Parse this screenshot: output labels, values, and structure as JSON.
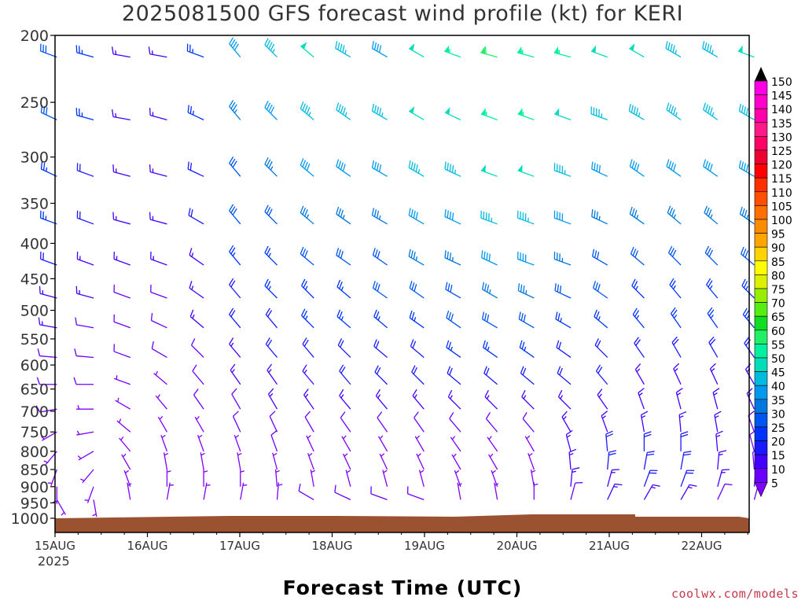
{
  "title": "2025081500 GFS forecast wind profile (kt) for KERI",
  "xlabel": "Forecast Time (UTC)",
  "credit": "coolwx.com/models",
  "year_label": "2025",
  "colors": {
    "ground": "#9b5230",
    "frame": "#000000",
    "scale": [
      "#8000ff",
      "#6a00ff",
      "#4400ff",
      "#1a1aff",
      "#0033ff",
      "#0055ee",
      "#0077dd",
      "#0099ee",
      "#00bbdd",
      "#00ddbb",
      "#00f0a0",
      "#22ee66",
      "#11dd22",
      "#55ee11",
      "#99ee00",
      "#ddf000",
      "#ffff00",
      "#ffd200",
      "#ffa500",
      "#ff8c00",
      "#ff7000",
      "#ff5000",
      "#ff3000",
      "#ff0000",
      "#ee0030",
      "#ff0066",
      "#ff1a88",
      "#ff00aa",
      "#ff00cc",
      "#ff00e6"
    ]
  },
  "chart_data": {
    "type": "wind-barb-timeheight",
    "units": "kt",
    "x_ticks": [
      "15AUG",
      "16AUG",
      "17AUG",
      "18AUG",
      "19AUG",
      "20AUG",
      "21AUG",
      "22AUG"
    ],
    "y_ticks": [
      200,
      250,
      300,
      350,
      400,
      450,
      500,
      550,
      600,
      650,
      700,
      750,
      800,
      850,
      900,
      950,
      1000
    ],
    "y_range": [
      1000,
      200
    ],
    "x_range_days": [
      0,
      7.6
    ],
    "legend_values": [
      150,
      145,
      140,
      135,
      130,
      125,
      120,
      115,
      110,
      105,
      100,
      95,
      90,
      85,
      80,
      75,
      70,
      65,
      60,
      55,
      50,
      45,
      40,
      35,
      30,
      25,
      20,
      15,
      10,
      5
    ],
    "legend_placement": "right",
    "profile": [
      {
        "p": 215,
        "speeds": [
          30,
          25,
          15,
          15,
          25,
          40,
          45,
          50,
          45,
          40,
          50,
          55,
          60,
          55,
          55,
          50,
          50,
          45,
          45,
          50
        ],
        "dirs": [
          290,
          285,
          280,
          280,
          290,
          320,
          315,
          310,
          300,
          300,
          300,
          290,
          285,
          285,
          285,
          290,
          300,
          300,
          300,
          290
        ]
      },
      {
        "p": 265,
        "speeds": [
          30,
          25,
          15,
          15,
          25,
          35,
          40,
          45,
          45,
          45,
          50,
          50,
          55,
          55,
          50,
          45,
          45,
          45,
          45,
          45
        ],
        "dirs": [
          295,
          285,
          280,
          285,
          295,
          320,
          315,
          310,
          305,
          300,
          300,
          295,
          290,
          290,
          290,
          290,
          300,
          305,
          305,
          300
        ]
      },
      {
        "p": 320,
        "speeds": [
          25,
          20,
          15,
          15,
          20,
          30,
          35,
          40,
          40,
          40,
          45,
          45,
          50,
          50,
          45,
          40,
          40,
          40,
          40,
          40
        ],
        "dirs": [
          295,
          290,
          285,
          285,
          295,
          320,
          315,
          310,
          305,
          300,
          300,
          295,
          290,
          290,
          290,
          295,
          305,
          305,
          305,
          300
        ]
      },
      {
        "p": 375,
        "speeds": [
          25,
          20,
          15,
          15,
          20,
          30,
          30,
          35,
          35,
          35,
          40,
          40,
          45,
          45,
          40,
          35,
          35,
          35,
          35,
          35
        ],
        "dirs": [
          290,
          290,
          285,
          285,
          300,
          320,
          315,
          310,
          305,
          300,
          300,
          295,
          290,
          290,
          290,
          295,
          305,
          310,
          310,
          305
        ]
      },
      {
        "p": 430,
        "speeds": [
          20,
          15,
          15,
          15,
          15,
          25,
          25,
          30,
          30,
          30,
          35,
          35,
          40,
          40,
          35,
          30,
          30,
          30,
          30,
          30
        ],
        "dirs": [
          290,
          290,
          290,
          290,
          305,
          320,
          315,
          310,
          305,
          305,
          300,
          295,
          295,
          290,
          290,
          300,
          310,
          315,
          315,
          310
        ]
      },
      {
        "p": 480,
        "speeds": [
          15,
          15,
          10,
          10,
          15,
          20,
          25,
          25,
          25,
          30,
          30,
          30,
          35,
          35,
          30,
          30,
          25,
          25,
          25,
          25
        ],
        "dirs": [
          285,
          285,
          290,
          290,
          305,
          320,
          315,
          315,
          310,
          305,
          305,
          300,
          300,
          295,
          295,
          305,
          315,
          320,
          320,
          315
        ]
      },
      {
        "p": 530,
        "speeds": [
          15,
          10,
          10,
          10,
          15,
          20,
          20,
          25,
          25,
          25,
          25,
          30,
          30,
          30,
          25,
          25,
          25,
          25,
          25,
          25
        ],
        "dirs": [
          280,
          280,
          290,
          295,
          310,
          320,
          320,
          315,
          310,
          310,
          305,
          305,
          300,
          300,
          300,
          310,
          320,
          325,
          325,
          320
        ]
      },
      {
        "p": 585,
        "speeds": [
          10,
          10,
          10,
          10,
          10,
          15,
          20,
          20,
          20,
          20,
          20,
          25,
          25,
          25,
          20,
          20,
          20,
          20,
          20,
          20
        ],
        "dirs": [
          275,
          275,
          290,
          300,
          315,
          320,
          320,
          320,
          315,
          310,
          310,
          305,
          305,
          305,
          305,
          315,
          325,
          330,
          330,
          325
        ]
      },
      {
        "p": 640,
        "speeds": [
          10,
          10,
          5,
          5,
          10,
          15,
          15,
          15,
          20,
          20,
          20,
          20,
          20,
          20,
          20,
          20,
          15,
          15,
          15,
          15
        ],
        "dirs": [
          270,
          270,
          290,
          310,
          320,
          325,
          325,
          320,
          320,
          315,
          315,
          310,
          310,
          310,
          310,
          320,
          330,
          335,
          335,
          330
        ]
      },
      {
        "p": 695,
        "speeds": [
          10,
          5,
          5,
          5,
          10,
          10,
          15,
          15,
          15,
          15,
          15,
          15,
          15,
          15,
          15,
          15,
          15,
          15,
          15,
          15
        ],
        "dirs": [
          260,
          270,
          300,
          320,
          325,
          330,
          330,
          325,
          320,
          320,
          320,
          315,
          315,
          315,
          315,
          325,
          340,
          345,
          345,
          335
        ]
      },
      {
        "p": 750,
        "speeds": [
          5,
          5,
          5,
          5,
          5,
          10,
          10,
          10,
          10,
          10,
          10,
          10,
          10,
          10,
          15,
          15,
          15,
          15,
          15,
          10
        ],
        "dirs": [
          240,
          260,
          310,
          330,
          330,
          335,
          335,
          330,
          325,
          325,
          325,
          320,
          320,
          320,
          330,
          340,
          350,
          355,
          350,
          340
        ]
      },
      {
        "p": 800,
        "speeds": [
          5,
          5,
          5,
          5,
          5,
          5,
          10,
          5,
          5,
          5,
          5,
          5,
          5,
          5,
          15,
          20,
          20,
          20,
          15,
          10
        ],
        "dirs": [
          220,
          240,
          320,
          340,
          340,
          340,
          340,
          335,
          330,
          330,
          330,
          325,
          325,
          330,
          345,
          355,
          360,
          360,
          355,
          345
        ]
      },
      {
        "p": 850,
        "speeds": [
          5,
          5,
          5,
          5,
          5,
          5,
          5,
          5,
          5,
          5,
          5,
          5,
          5,
          5,
          15,
          20,
          20,
          20,
          15,
          10
        ],
        "dirs": [
          200,
          220,
          330,
          350,
          350,
          350,
          345,
          340,
          335,
          335,
          335,
          330,
          330,
          340,
          355,
          5,
          10,
          10,
          5,
          355
        ]
      },
      {
        "p": 900,
        "speeds": [
          5,
          5,
          5,
          5,
          5,
          5,
          5,
          5,
          5,
          5,
          5,
          5,
          5,
          5,
          15,
          15,
          20,
          20,
          15,
          10
        ],
        "dirs": [
          180,
          200,
          340,
          360,
          360,
          360,
          355,
          350,
          345,
          345,
          345,
          340,
          340,
          350,
          5,
          15,
          20,
          20,
          15,
          5
        ]
      },
      {
        "p": 940,
        "speeds": [
          5,
          5,
          5,
          5,
          5,
          5,
          5,
          10,
          10,
          10,
          10,
          5,
          5,
          5,
          10,
          15,
          15,
          15,
          10,
          10
        ],
        "dirs": [
          150,
          170,
          350,
          10,
          10,
          10,
          5,
          300,
          295,
          290,
          290,
          350,
          350,
          360,
          15,
          25,
          30,
          30,
          25,
          15
        ]
      }
    ]
  }
}
